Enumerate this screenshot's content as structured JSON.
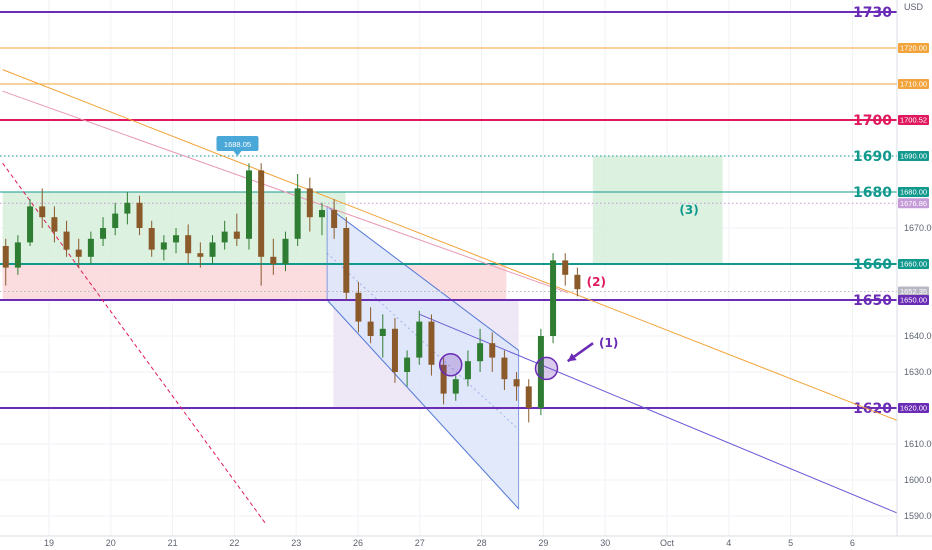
{
  "chart_data": {
    "type": "candlestick",
    "currency": "USD",
    "yrange": [
      1584,
      1734
    ],
    "y_ticks": [
      1590,
      1600,
      1610,
      1620,
      1630,
      1640,
      1650,
      1660,
      1670,
      1680,
      1690,
      1700,
      1710,
      1720,
      1730
    ],
    "x_ticks": [
      {
        "label": "19",
        "day": 0
      },
      {
        "label": "20",
        "day": 1
      },
      {
        "label": "21",
        "day": 2
      },
      {
        "label": "22",
        "day": 3
      },
      {
        "label": "23",
        "day": 4
      },
      {
        "label": "26",
        "day": 5
      },
      {
        "label": "27",
        "day": 6
      },
      {
        "label": "28",
        "day": 7
      },
      {
        "label": "29",
        "day": 8
      },
      {
        "label": "30",
        "day": 9
      },
      {
        "label": "Oct",
        "day": 10
      },
      {
        "label": "4",
        "day": 11
      },
      {
        "label": "5",
        "day": 12
      },
      {
        "label": "6",
        "day": 13
      }
    ],
    "levels": [
      {
        "price": 1730,
        "label": "1730",
        "color": "#6a2bb5",
        "width": 2,
        "style": "solid",
        "tag": ""
      },
      {
        "price": 1720,
        "label": "",
        "color": "#f2a33a",
        "width": 1,
        "style": "solid",
        "tag": "1720.00"
      },
      {
        "price": 1710,
        "label": "",
        "color": "#f2a33a",
        "width": 1,
        "style": "solid",
        "tag": "1710.00"
      },
      {
        "price": 1700,
        "label": "1700",
        "color": "#e0195f",
        "width": 2,
        "style": "solid",
        "tag": "1700.52"
      },
      {
        "price": 1690,
        "label": "1690",
        "color": "#11998e",
        "width": 1,
        "style": "dotted",
        "tag": "1690.00"
      },
      {
        "price": 1680,
        "label": "1680",
        "color": "#11998e",
        "width": 1,
        "style": "solid",
        "tag": "1680.00"
      },
      {
        "price": 1676.86,
        "label": "",
        "color": "#c59bd8",
        "width": 1,
        "style": "dotted",
        "tag": "1676.86"
      },
      {
        "price": 1660,
        "label": "1660",
        "color": "#11998e",
        "width": 2,
        "style": "solid",
        "tag": "1660.00"
      },
      {
        "price": 1652.35,
        "label": "",
        "color": "#b8b8c4",
        "width": 1,
        "style": "dotted",
        "tag": "1652.35"
      },
      {
        "price": 1650,
        "label": "1650",
        "color": "#6a2bb5",
        "width": 2,
        "style": "solid",
        "tag": "1650.00"
      },
      {
        "price": 1620,
        "label": "1620",
        "color": "#6a2bb5",
        "width": 2,
        "style": "solid",
        "tag": "1620.00"
      }
    ],
    "zones": [
      {
        "name": "green-range-zone",
        "day_start": -0.75,
        "day_end": 4.8,
        "price_low": 1660,
        "price_high": 1680,
        "color": "#d6efd9"
      },
      {
        "name": "red-range-zone",
        "day_start": -0.75,
        "day_end": 7.4,
        "price_low": 1650,
        "price_high": 1660,
        "color": "#fad7db"
      },
      {
        "name": "target-zone",
        "day_start": 8.8,
        "day_end": 10.9,
        "price_low": 1660,
        "price_high": 1690,
        "color": "#d6efd9"
      },
      {
        "name": "consolidation-zone",
        "day_start": 4.6,
        "day_end": 7.6,
        "price_low": 1620,
        "price_high": 1650,
        "color": "#ebe3f5"
      }
    ],
    "channel": {
      "upper_start": [
        4.5,
        1676
      ],
      "upper_end": [
        7.6,
        1636
      ],
      "lower_start": [
        4.5,
        1650
      ],
      "lower_end": [
        7.6,
        1592
      ],
      "color": "#5b7fd6",
      "fill": "#dfe7fb"
    },
    "trendlines": [
      {
        "name": "orange-trendline",
        "from": [
          -0.75,
          1714
        ],
        "to": [
          14.4,
          1612
        ],
        "color": "#f2a33a",
        "style": "solid"
      },
      {
        "name": "pink-trendline",
        "from": [
          -0.75,
          1708
        ],
        "to": [
          8.4,
          1652
        ],
        "color": "#e89ab5",
        "style": "solid"
      },
      {
        "name": "purple-trendline",
        "from": [
          6.0,
          1646
        ],
        "to": [
          14.4,
          1586
        ],
        "color": "#6a5bd6",
        "style": "solid"
      },
      {
        "name": "red-dashed-trendline",
        "from": [
          -0.75,
          1688
        ],
        "to": [
          3.5,
          1588
        ],
        "color": "#e0195f",
        "style": "dashed"
      }
    ],
    "candles": [
      [
        1665,
        1667,
        1654,
        1659
      ],
      [
        1659,
        1668,
        1657,
        1666
      ],
      [
        1666,
        1678,
        1665,
        1676
      ],
      [
        1676,
        1681,
        1670,
        1673
      ],
      [
        1673,
        1676,
        1666,
        1669
      ],
      [
        1669,
        1672,
        1662,
        1664
      ],
      [
        1664,
        1667,
        1659,
        1662
      ],
      [
        1662,
        1669,
        1660,
        1667
      ],
      [
        1667,
        1673,
        1665,
        1670
      ],
      [
        1670,
        1677,
        1668,
        1674
      ],
      [
        1674,
        1680,
        1671,
        1677
      ],
      [
        1677,
        1679,
        1668,
        1670
      ],
      [
        1670,
        1672,
        1662,
        1664
      ],
      [
        1664,
        1668,
        1661,
        1666
      ],
      [
        1666,
        1670,
        1663,
        1668
      ],
      [
        1668,
        1671,
        1660,
        1663
      ],
      [
        1663,
        1666,
        1659,
        1662
      ],
      [
        1662,
        1668,
        1660,
        1666
      ],
      [
        1666,
        1672,
        1664,
        1669
      ],
      [
        1669,
        1674,
        1665,
        1667
      ],
      [
        1667,
        1688,
        1664,
        1686
      ],
      [
        1686,
        1688,
        1654,
        1662
      ],
      [
        1662,
        1667,
        1657,
        1660
      ],
      [
        1660,
        1669,
        1658,
        1667
      ],
      [
        1667,
        1685,
        1665,
        1681
      ],
      [
        1681,
        1684,
        1669,
        1673
      ],
      [
        1673,
        1677,
        1668,
        1675
      ],
      [
        1675,
        1678,
        1667,
        1670
      ],
      [
        1670,
        1673,
        1650,
        1652
      ],
      [
        1652,
        1655,
        1641,
        1644
      ],
      [
        1644,
        1648,
        1638,
        1640
      ],
      [
        1640,
        1646,
        1634,
        1642
      ],
      [
        1642,
        1645,
        1627,
        1630
      ],
      [
        1630,
        1636,
        1626,
        1634
      ],
      [
        1634,
        1647,
        1632,
        1644
      ],
      [
        1644,
        1646,
        1629,
        1632
      ],
      [
        1632,
        1634,
        1621,
        1624
      ],
      [
        1624,
        1629,
        1622,
        1628
      ],
      [
        1628,
        1636,
        1626,
        1633
      ],
      [
        1633,
        1642,
        1630,
        1638
      ],
      [
        1638,
        1641,
        1630,
        1634
      ],
      [
        1634,
        1636,
        1625,
        1628
      ],
      [
        1628,
        1630,
        1622,
        1626
      ],
      [
        1626,
        1628,
        1616,
        1620
      ],
      [
        1620,
        1642,
        1618,
        1640
      ],
      [
        1640,
        1663,
        1638,
        1661
      ],
      [
        1661,
        1663,
        1654,
        1657
      ],
      [
        1657,
        1659,
        1651,
        1653
      ]
    ],
    "candle_day_start": -0.7,
    "candle_day_end": 8.55,
    "callouts": [
      {
        "text": "1688.05",
        "day": 3.05,
        "price": 1688.05,
        "color": "#4aa8d8"
      }
    ],
    "circles": [
      {
        "day": 6.5,
        "price": 1632,
        "color": "#6a2bb5"
      },
      {
        "day": 8.05,
        "price": 1631,
        "color": "#6a2bb5"
      }
    ],
    "annotations": [
      {
        "text": "(1)",
        "day": 8.9,
        "price": 1638,
        "color": "#6a2bb5",
        "arrow_to": [
          8.2,
          1633
        ]
      },
      {
        "text": "(2)",
        "day": 8.7,
        "price": 1655,
        "color": "#e0195f"
      },
      {
        "text": "(3)",
        "day": 10.2,
        "price": 1675,
        "color": "#11998e"
      }
    ]
  },
  "axis": {
    "currency_label": "USD"
  },
  "colors": {
    "up_candle": "#2e7d32",
    "down_candle": "#8a5a2b",
    "background": "#ffffff",
    "grid": "#f0f2f6"
  }
}
